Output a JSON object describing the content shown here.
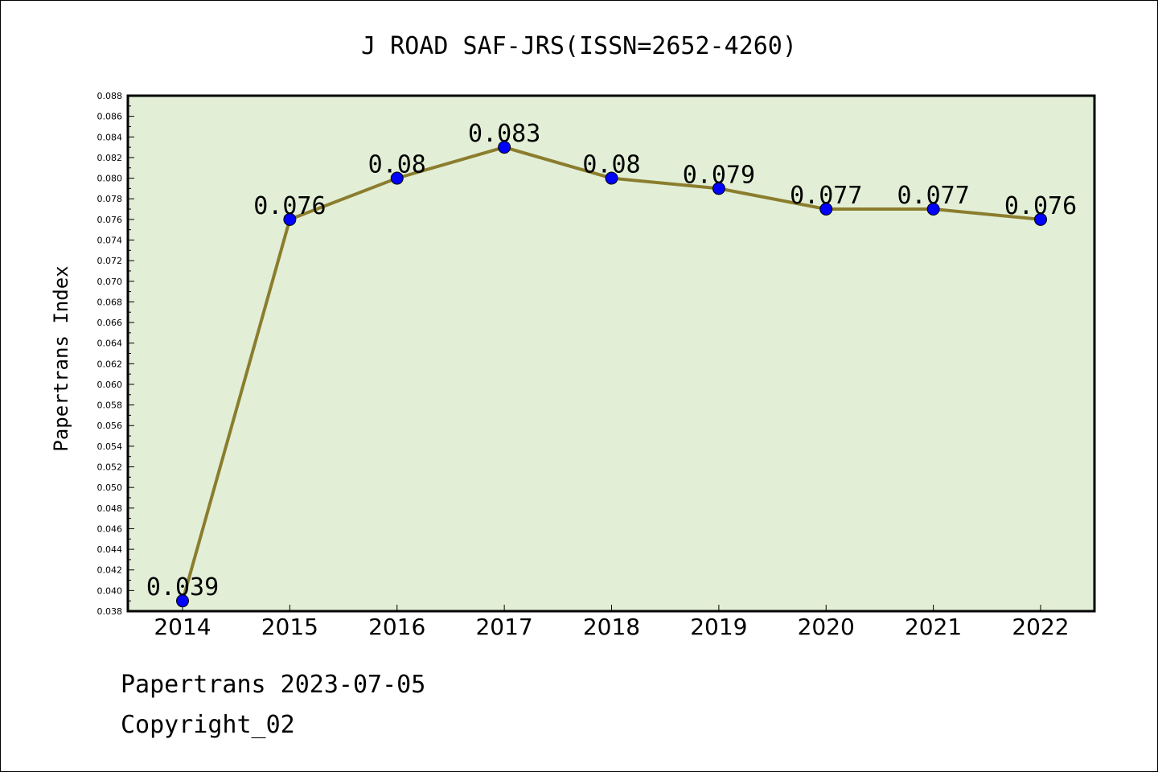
{
  "chart_data": {
    "type": "line",
    "title": "J ROAD SAF-JRS(ISSN=2652-4260)",
    "ylabel": "Papertrans Index",
    "xlabel": "",
    "x": [
      "2014",
      "2015",
      "2016",
      "2017",
      "2018",
      "2019",
      "2020",
      "2021",
      "2022"
    ],
    "series": [
      {
        "values": [
          0.039,
          0.076,
          0.08,
          0.083,
          0.08,
          0.079,
          0.077,
          0.077,
          0.076
        ],
        "labels": [
          "0.039",
          "0.076",
          "0.08",
          "0.083",
          "0.08",
          "0.079",
          "0.077",
          "0.077",
          "0.076"
        ]
      }
    ],
    "ylim": [
      0.038,
      0.088
    ],
    "ytick_step": 0.002,
    "yticks": [
      "0.038",
      "0.040",
      "0.042",
      "0.044",
      "0.046",
      "0.048",
      "0.050",
      "0.052",
      "0.054",
      "0.056",
      "0.058",
      "0.060",
      "0.062",
      "0.064",
      "0.066",
      "0.068",
      "0.070",
      "0.072",
      "0.074",
      "0.076",
      "0.078",
      "0.080",
      "0.082",
      "0.084",
      "0.086",
      "0.088"
    ],
    "grid": false,
    "colors": {
      "plot_background": "#e2efd6",
      "line": "#8b7d2e",
      "marker": "#0000ff",
      "axis": "#000000"
    }
  },
  "footer": {
    "source": "Papertrans 2023-07-05",
    "copyright": "Copyright_02"
  }
}
